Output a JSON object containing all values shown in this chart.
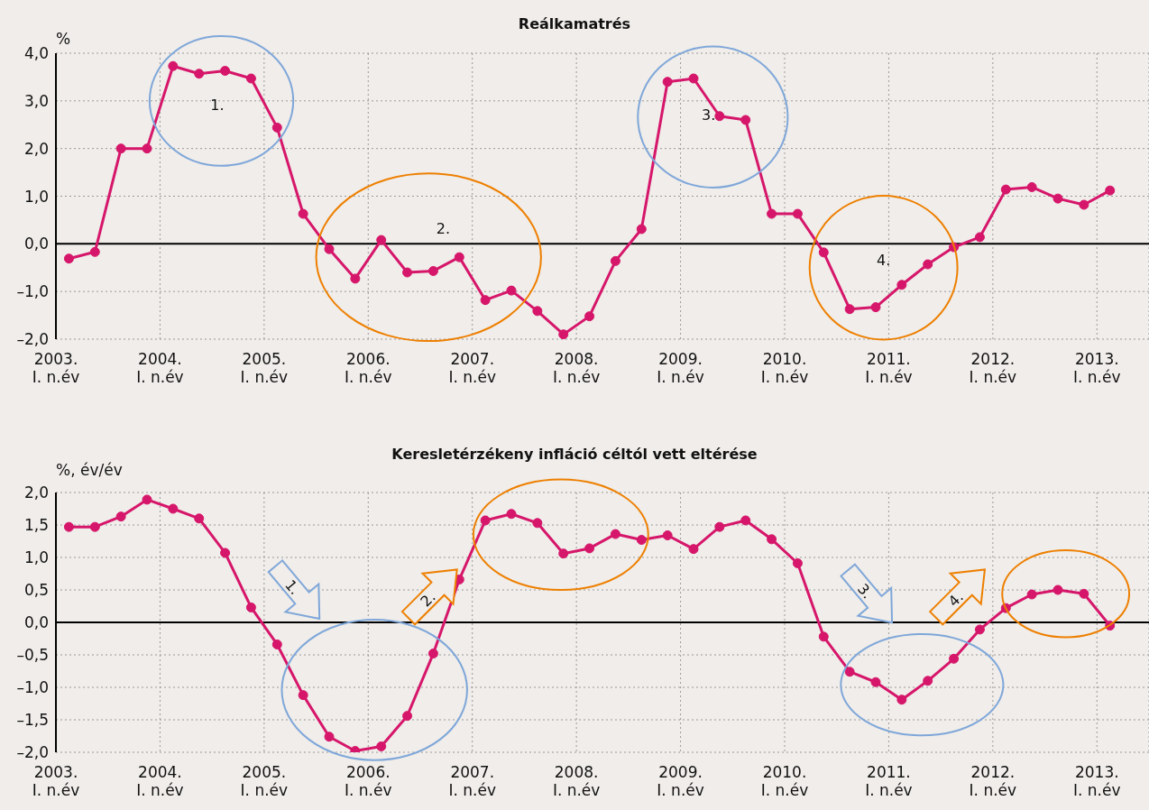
{
  "chart_data": [
    {
      "type": "line",
      "title": "Reálkamatrés",
      "ylabel": "%",
      "x": [
        2003.125,
        2003.375,
        2003.625,
        2003.875,
        2004.125,
        2004.375,
        2004.625,
        2004.875,
        2005.125,
        2005.375,
        2005.625,
        2005.875,
        2006.125,
        2006.375,
        2006.625,
        2006.875,
        2007.125,
        2007.375,
        2007.625,
        2007.875,
        2008.125,
        2008.375,
        2008.625,
        2008.875,
        2009.125,
        2009.375,
        2009.625,
        2009.875,
        2010.125,
        2010.375,
        2010.625,
        2010.875,
        2011.125,
        2011.375,
        2011.625,
        2011.875,
        2012.125,
        2012.375,
        2012.625,
        2012.875,
        2013.125
      ],
      "series": [
        {
          "color": "#d6166a",
          "values": [
            -0.31,
            -0.17,
            2.0,
            2.0,
            3.73,
            3.57,
            3.63,
            3.47,
            2.44,
            0.63,
            -0.11,
            -0.73,
            0.08,
            -0.6,
            -0.57,
            -0.28,
            -1.18,
            -0.98,
            -1.41,
            -1.9,
            -1.52,
            -0.36,
            0.31,
            3.4,
            3.47,
            2.68,
            2.6,
            0.63,
            0.63,
            -0.18,
            -1.37,
            -1.33,
            -0.86,
            -0.43,
            -0.07,
            0.14,
            1.14,
            1.19,
            0.95,
            0.82,
            1.12
          ]
        }
      ],
      "xlim": [
        2003,
        2013.5
      ],
      "xticks": [
        {
          "value": 2003,
          "label": "2003. I. n.év"
        },
        {
          "value": 2004,
          "label": "2004. I. n.év"
        },
        {
          "value": 2005,
          "label": "2005. I. n.év"
        },
        {
          "value": 2006,
          "label": "2006. I. n.év"
        },
        {
          "value": 2007,
          "label": "2007. I. n.év"
        },
        {
          "value": 2008,
          "label": "2008. I. n.év"
        },
        {
          "value": 2009,
          "label": "2009. I. n.év"
        },
        {
          "value": 2010,
          "label": "2010. I. n.év"
        },
        {
          "value": 2011,
          "label": "2011. I. n.év"
        },
        {
          "value": 2012,
          "label": "2012. I. n.év"
        },
        {
          "value": 2013,
          "label": "2013. I. n.év"
        }
      ],
      "ylim": [
        -2,
        4
      ],
      "yticks": [
        {
          "value": -2,
          "label": "–2,0"
        },
        {
          "value": -1,
          "label": "–1,0"
        },
        {
          "value": 0,
          "label": "0,0"
        },
        {
          "value": 1,
          "label": "1,0"
        },
        {
          "value": 2,
          "label": "2,0"
        },
        {
          "value": 3,
          "label": "3,0"
        },
        {
          "value": 4,
          "label": "4,0"
        }
      ],
      "ref_lines": [
        {
          "axis": "y",
          "value": 0,
          "color": "#000000"
        }
      ],
      "grid": true,
      "marker": "circle",
      "annotations": [
        "1.",
        "2.",
        "3.",
        "4."
      ]
    },
    {
      "type": "line",
      "title": "Keresletérzékeny infláció céltól vett eltérése",
      "ylabel": "%, év/év",
      "x": [
        2003.125,
        2003.375,
        2003.625,
        2003.875,
        2004.125,
        2004.375,
        2004.625,
        2004.875,
        2005.125,
        2005.375,
        2005.625,
        2005.875,
        2006.125,
        2006.375,
        2006.625,
        2006.875,
        2007.125,
        2007.375,
        2007.625,
        2007.875,
        2008.125,
        2008.375,
        2008.625,
        2008.875,
        2009.125,
        2009.375,
        2009.625,
        2009.875,
        2010.125,
        2010.375,
        2010.625,
        2010.875,
        2011.125,
        2011.375,
        2011.625,
        2011.875,
        2012.125,
        2012.375,
        2012.625,
        2012.875,
        2013.125
      ],
      "series": [
        {
          "color": "#d6166a",
          "values": [
            1.47,
            1.47,
            1.63,
            1.89,
            1.75,
            1.6,
            1.07,
            0.23,
            -0.34,
            -1.12,
            -1.76,
            -1.98,
            -1.91,
            -1.44,
            -0.48,
            0.66,
            1.57,
            1.67,
            1.53,
            1.06,
            1.14,
            1.36,
            1.27,
            1.34,
            1.13,
            1.47,
            1.57,
            1.28,
            0.91,
            -0.22,
            -0.76,
            -0.92,
            -1.19,
            -0.9,
            -0.56,
            -0.11,
            0.22,
            0.43,
            0.5,
            0.44,
            -0.05
          ]
        }
      ],
      "xlim": [
        2003,
        2013.5
      ],
      "xticks": [
        {
          "value": 2003,
          "label": "2003. I. n.év"
        },
        {
          "value": 2004,
          "label": "2004. I. n.év"
        },
        {
          "value": 2005,
          "label": "2005. I. n.év"
        },
        {
          "value": 2006,
          "label": "2006. I. n.év"
        },
        {
          "value": 2007,
          "label": "2007. I. n.év"
        },
        {
          "value": 2008,
          "label": "2008. I. n.év"
        },
        {
          "value": 2009,
          "label": "2009. I. n.év"
        },
        {
          "value": 2010,
          "label": "2010. I. n.év"
        },
        {
          "value": 2011,
          "label": "2011. I. n.év"
        },
        {
          "value": 2012,
          "label": "2012. I. n.év"
        },
        {
          "value": 2013,
          "label": "2013. I. n.év"
        }
      ],
      "ylim": [
        -2,
        2
      ],
      "yticks": [
        {
          "value": -2,
          "label": "–2,0"
        },
        {
          "value": -1.5,
          "label": "–1,5"
        },
        {
          "value": -1,
          "label": "–1,0"
        },
        {
          "value": -0.5,
          "label": "–0,5"
        },
        {
          "value": 0,
          "label": "0,0"
        },
        {
          "value": 0.5,
          "label": "0,5"
        },
        {
          "value": 1,
          "label": "1,0"
        },
        {
          "value": 1.5,
          "label": "1,5"
        },
        {
          "value": 2,
          "label": "2,0"
        }
      ],
      "ref_lines": [
        {
          "axis": "y",
          "value": 0,
          "color": "#000000"
        }
      ],
      "grid": true,
      "marker": "circle",
      "annotations": [
        "1.",
        "2.",
        "3.",
        "4."
      ]
    }
  ]
}
